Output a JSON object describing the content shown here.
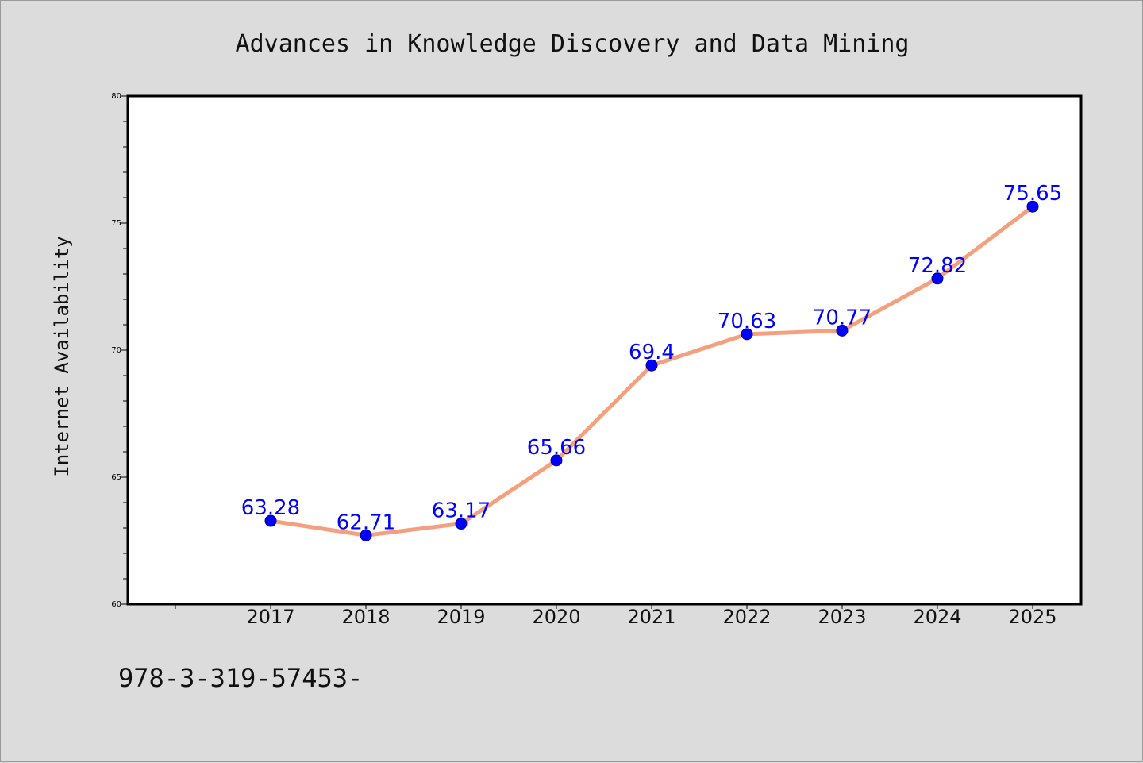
{
  "chart_data": {
    "type": "line",
    "title": "Advances in Knowledge Discovery and Data Mining",
    "xlabel": "",
    "ylabel": "Internet Availability",
    "categories": [
      "2017",
      "2018",
      "2019",
      "2020",
      "2021",
      "2022",
      "2023",
      "2024",
      "2025"
    ],
    "values": [
      63.28,
      62.71,
      63.17,
      65.66,
      69.4,
      70.63,
      70.77,
      72.82,
      75.65
    ],
    "data_labels": [
      "63.28",
      "62.71",
      "63.17",
      "65.66",
      "69.4",
      "70.63",
      "70.77",
      "72.82",
      "75.65"
    ],
    "ylim": [
      60,
      80
    ],
    "yticks": [
      "60",
      "65",
      "70",
      "75",
      "80"
    ],
    "grid": false,
    "legend": "none",
    "line_color": "#f4a07e",
    "marker_color": "#0000ff",
    "label_color": "#0000ff"
  },
  "footer": {
    "text": "978-3-319-57453-"
  }
}
